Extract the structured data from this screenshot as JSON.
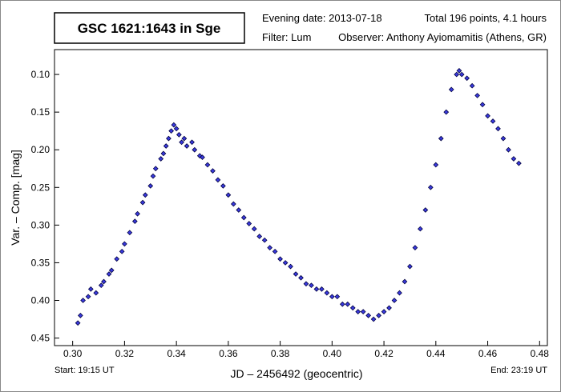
{
  "chart_data": {
    "type": "scatter",
    "title": "GSC 1621:1643 in Sge",
    "evening_date": "Evening date: 2013-07-18",
    "summary": "Total 196 points, 4.1 hours",
    "filter": "Filter: Lum",
    "observer": "Observer: Anthony Ayiomamitis (Athens, GR)",
    "x_label": "JD – 2456492  (geocentric)",
    "y_label": "Var. – Comp. [mag]",
    "start": "Start: 19:15 UT",
    "end": "End: 23:19 UT",
    "xlim": [
      0.293,
      0.483
    ],
    "ylim": [
      0.067,
      0.46
    ],
    "y_inverted": true,
    "xticks": [
      {
        "value": 0.3,
        "label": "0.30"
      },
      {
        "value": 0.32,
        "label": "0.32"
      },
      {
        "value": 0.34,
        "label": "0.34"
      },
      {
        "value": 0.36,
        "label": "0.36"
      },
      {
        "value": 0.38,
        "label": "0.38"
      },
      {
        "value": 0.4,
        "label": "0.40"
      },
      {
        "value": 0.42,
        "label": "0.42"
      },
      {
        "value": 0.44,
        "label": "0.44"
      },
      {
        "value": 0.46,
        "label": "0.46"
      },
      {
        "value": 0.48,
        "label": "0.48"
      }
    ],
    "yticks": [
      {
        "value": 0.1,
        "label": "0.10"
      },
      0.15,
      {
        "value": 0.2,
        "label": "0.20"
      },
      0.25,
      {
        "value": 0.3,
        "label": "0.30"
      },
      0.35,
      {
        "value": 0.4,
        "label": "0.40"
      },
      0.45
    ],
    "color": "#3a3adf",
    "x": [
      0.302,
      0.303,
      0.304,
      0.306,
      0.307,
      0.309,
      0.311,
      0.312,
      0.314,
      0.315,
      0.317,
      0.319,
      0.32,
      0.322,
      0.324,
      0.325,
      0.327,
      0.328,
      0.33,
      0.331,
      0.332,
      0.334,
      0.335,
      0.336,
      0.337,
      0.338,
      0.339,
      0.34,
      0.341,
      0.342,
      0.343,
      0.344,
      0.346,
      0.347,
      0.349,
      0.35,
      0.352,
      0.354,
      0.356,
      0.358,
      0.36,
      0.362,
      0.364,
      0.366,
      0.368,
      0.37,
      0.372,
      0.374,
      0.376,
      0.378,
      0.38,
      0.382,
      0.384,
      0.386,
      0.388,
      0.39,
      0.392,
      0.394,
      0.396,
      0.398,
      0.4,
      0.402,
      0.404,
      0.406,
      0.408,
      0.41,
      0.412,
      0.414,
      0.416,
      0.418,
      0.42,
      0.422,
      0.424,
      0.426,
      0.428,
      0.43,
      0.432,
      0.434,
      0.436,
      0.438,
      0.44,
      0.442,
      0.444,
      0.446,
      0.448,
      0.449,
      0.45,
      0.452,
      0.454,
      0.456,
      0.458,
      0.46,
      0.462,
      0.464,
      0.466,
      0.468,
      0.47,
      0.472
    ],
    "values": [
      0.43,
      0.42,
      0.4,
      0.395,
      0.385,
      0.39,
      0.38,
      0.375,
      0.365,
      0.36,
      0.345,
      0.335,
      0.325,
      0.31,
      0.295,
      0.285,
      0.27,
      0.26,
      0.248,
      0.235,
      0.225,
      0.212,
      0.205,
      0.195,
      0.185,
      0.175,
      0.167,
      0.172,
      0.18,
      0.19,
      0.185,
      0.195,
      0.19,
      0.2,
      0.208,
      0.21,
      0.22,
      0.228,
      0.24,
      0.248,
      0.26,
      0.272,
      0.28,
      0.29,
      0.298,
      0.305,
      0.315,
      0.32,
      0.33,
      0.335,
      0.345,
      0.35,
      0.355,
      0.365,
      0.37,
      0.378,
      0.38,
      0.385,
      0.385,
      0.39,
      0.395,
      0.395,
      0.405,
      0.405,
      0.41,
      0.415,
      0.415,
      0.42,
      0.425,
      0.42,
      0.415,
      0.41,
      0.4,
      0.39,
      0.375,
      0.355,
      0.33,
      0.305,
      0.28,
      0.25,
      0.22,
      0.185,
      0.15,
      0.12,
      0.1,
      0.095,
      0.1,
      0.105,
      0.115,
      0.128,
      0.14,
      0.155,
      0.162,
      0.172,
      0.185,
      0.2,
      0.212,
      0.218
    ]
  }
}
